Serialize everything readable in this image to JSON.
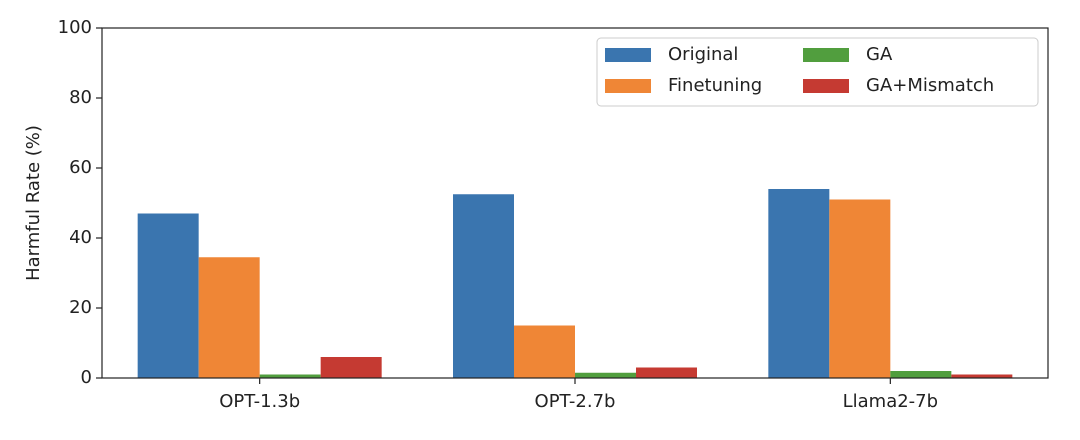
{
  "chart_data": {
    "type": "bar",
    "y_label": "Harmful Rate (%)",
    "categories": [
      "OPT-1.3b",
      "OPT-2.7b",
      "Llama2-7b"
    ],
    "series": [
      {
        "name": "Original",
        "color": "#3a75af",
        "values": [
          47,
          52.5,
          54
        ]
      },
      {
        "name": "Finetuning",
        "color": "#ef8636",
        "values": [
          34.5,
          15,
          51
        ]
      },
      {
        "name": "GA",
        "color": "#519e3e",
        "values": [
          1,
          1.5,
          2
        ]
      },
      {
        "name": "GA+Mismatch",
        "color": "#c53a32",
        "values": [
          6,
          3,
          1
        ]
      }
    ],
    "ylim": [
      0,
      100
    ],
    "yticks": [
      0,
      20,
      40,
      60,
      80,
      100
    ],
    "legend": "upper right"
  }
}
